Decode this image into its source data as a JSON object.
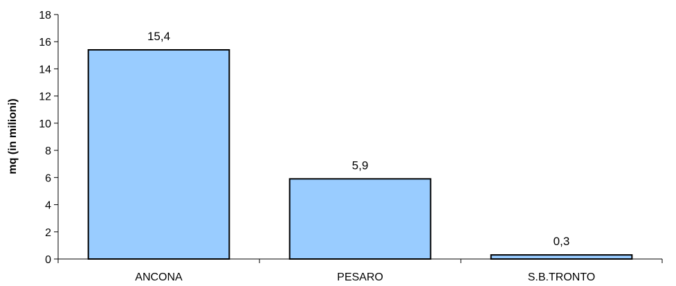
{
  "chart_data": {
    "type": "bar",
    "categories": [
      "ANCONA",
      "PESARO",
      "S.B.TRONTO"
    ],
    "values": [
      15.4,
      5.9,
      0.3
    ],
    "value_labels": [
      "15,4",
      "5,9",
      "0,3"
    ],
    "title": "",
    "xlabel": "",
    "ylabel": "mq (in milioni)",
    "ylim": [
      0,
      18
    ],
    "yticks": [
      0,
      2,
      4,
      6,
      8,
      10,
      12,
      14,
      16,
      18
    ],
    "grid": false,
    "legend": "none",
    "colors": {
      "bar_fill": "#99CCFF",
      "bar_stroke": "#000000",
      "axis": "#000000",
      "text": "#000000"
    }
  }
}
